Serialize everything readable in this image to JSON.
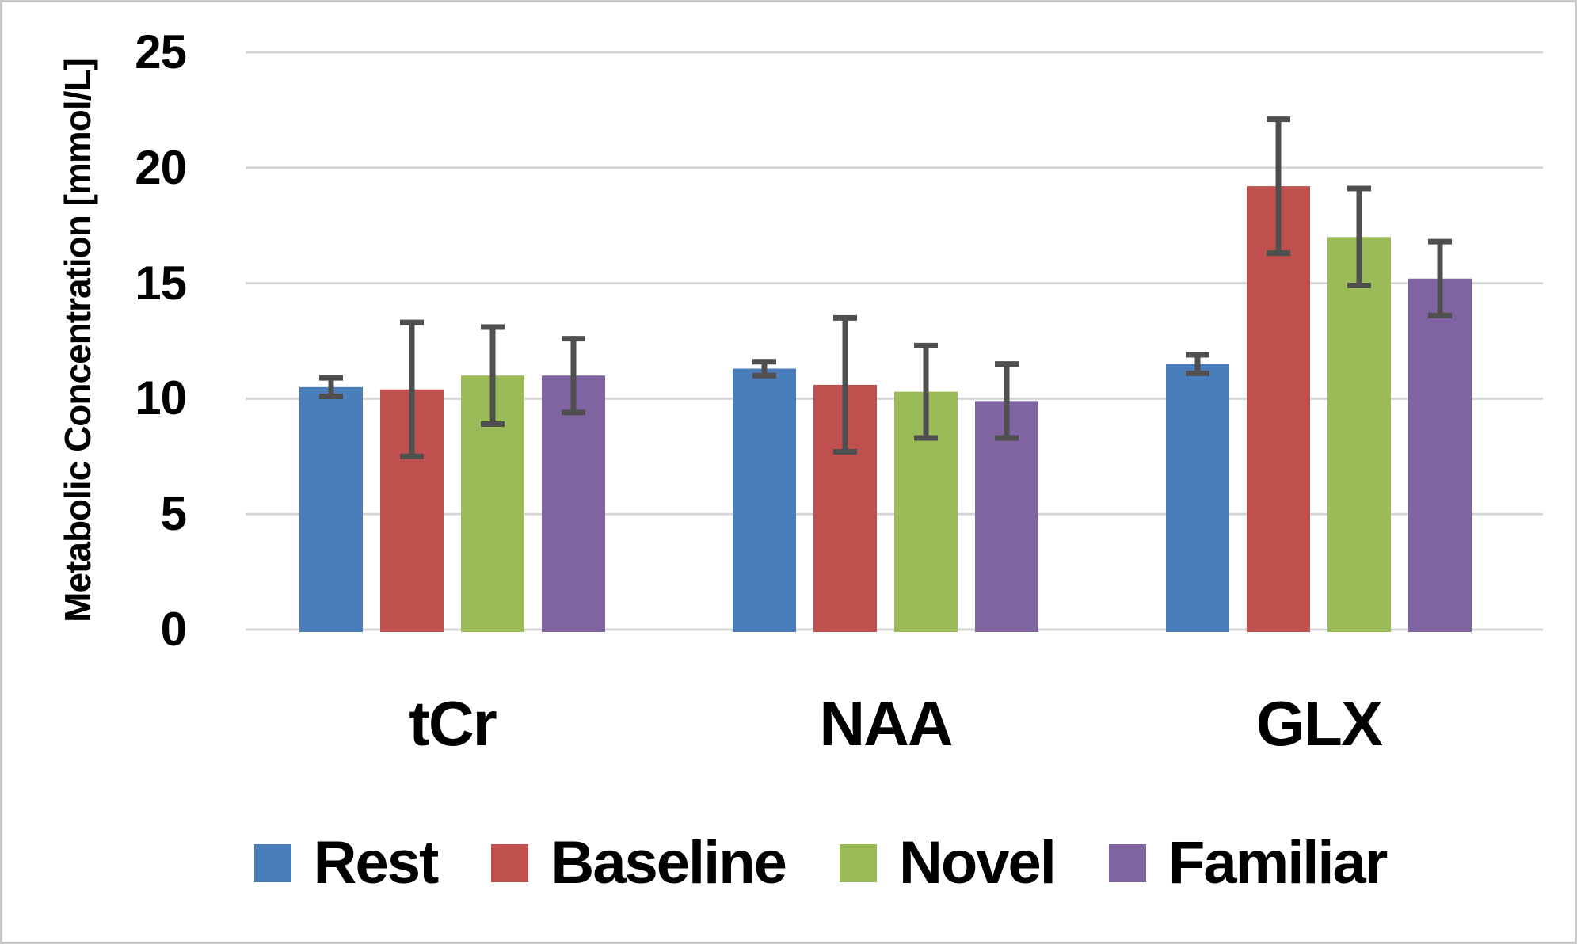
{
  "chart_data": {
    "type": "bar",
    "title": "",
    "ylabel": "Metabolic Concentration [mmol/L]",
    "xlabel": "",
    "categories": [
      "tCr",
      "NAA",
      "GLX"
    ],
    "series": [
      {
        "name": "Rest",
        "color": "#4A7EBB",
        "values": [
          10.5,
          11.3,
          11.5
        ],
        "errors": [
          0.4,
          0.3,
          0.4
        ]
      },
      {
        "name": "Baseline",
        "color": "#C0504D",
        "values": [
          10.4,
          10.6,
          19.2
        ],
        "errors": [
          2.9,
          2.9,
          2.9
        ]
      },
      {
        "name": "Novel",
        "color": "#9BBB59",
        "values": [
          11.0,
          10.3,
          17.0
        ],
        "errors": [
          2.1,
          2.0,
          2.1
        ]
      },
      {
        "name": "Familiar",
        "color": "#8064A2",
        "values": [
          11.0,
          9.9,
          15.2
        ],
        "errors": [
          1.6,
          1.6,
          1.6
        ]
      }
    ],
    "ylim": [
      0,
      25
    ],
    "y_ticks": [
      0,
      5,
      10,
      15,
      20,
      25
    ],
    "grid": "horizontal",
    "gridline_color": "#D6D6D6",
    "error_bar_color": "#4F4F4F",
    "legend_position": "bottom",
    "background_color": "#FFFFFF",
    "frame_border_color": "#C9C9C9"
  }
}
